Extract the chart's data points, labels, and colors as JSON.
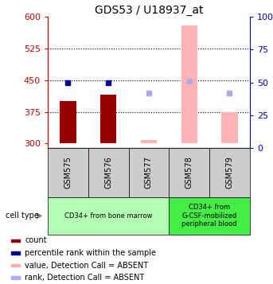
{
  "title": "GDS53 / U18937_at",
  "samples": [
    "GSM575",
    "GSM576",
    "GSM577",
    "GSM578",
    "GSM579"
  ],
  "ylim_left": [
    290,
    600
  ],
  "ylim_right": [
    0,
    100
  ],
  "yticks_left": [
    300,
    375,
    450,
    525,
    600
  ],
  "yticks_right": [
    0,
    25,
    50,
    75,
    100
  ],
  "hlines": [
    375,
    450,
    525
  ],
  "bar_base": 300,
  "count_values": [
    400,
    415,
    null,
    null,
    null
  ],
  "rank_values": [
    445,
    445,
    null,
    null,
    null
  ],
  "absent_value_bars": [
    null,
    null,
    308,
    580,
    375
  ],
  "absent_rank_dots": [
    null,
    null,
    420,
    448,
    420
  ],
  "cell_type_groups": [
    {
      "label": "CD34+ from bone marrow",
      "samples": [
        0,
        1,
        2
      ],
      "color": "#b3ffb3"
    },
    {
      "label": "CD34+ from\nG-CSF-mobilized\nperipheral blood",
      "samples": [
        3,
        4
      ],
      "color": "#44ee44"
    }
  ],
  "left_axis_color": "#cc0000",
  "right_axis_color": "#0000cc",
  "bar_width": 0.4,
  "legend_colors": [
    "#990000",
    "#000099",
    "#ffaaaa",
    "#aaaaff"
  ],
  "legend_labels": [
    "count",
    "percentile rank within the sample",
    "value, Detection Call = ABSENT",
    "rank, Detection Call = ABSENT"
  ]
}
